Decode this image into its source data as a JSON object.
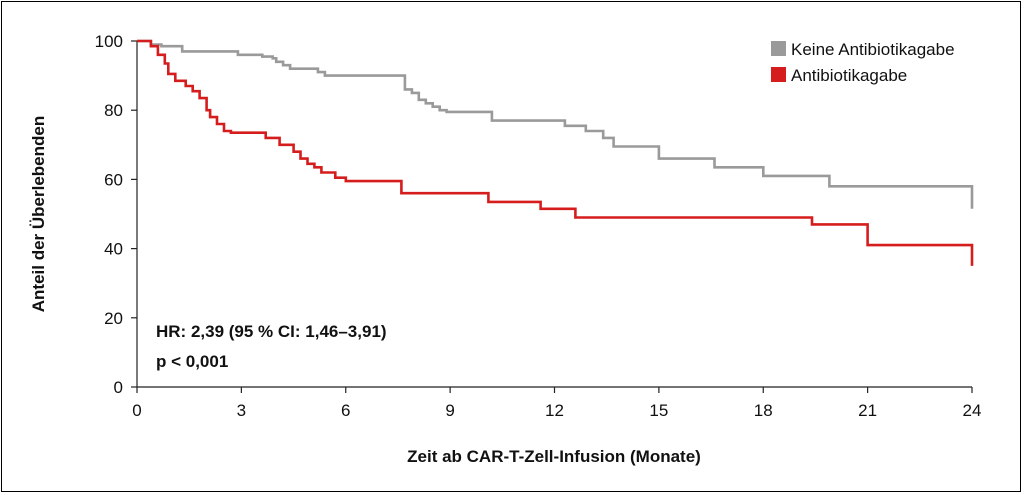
{
  "chart_data": {
    "type": "line",
    "step": true,
    "xlabel": "Zeit ab CAR-T-Zell-Infusion (Monate)",
    "ylabel": "Anteil der Überlebenden",
    "xlim": [
      0,
      24
    ],
    "ylim": [
      0,
      100
    ],
    "xticks": [
      "0",
      "3",
      "6",
      "9",
      "12",
      "15",
      "18",
      "21",
      "24"
    ],
    "yticks": [
      "0",
      "20",
      "40",
      "60",
      "80",
      "100"
    ],
    "grid": false,
    "legend_position": "top-right",
    "annotations": [
      "HR: 2,39 (95 % CI: 1,46–3,91)",
      "p < 0,001"
    ],
    "series": [
      {
        "name": "Keine Antibiotikagabe",
        "color": "#9a9a9a",
        "x": [
          0,
          0.4,
          0.7,
          1.3,
          2.9,
          3.6,
          3.9,
          4.0,
          4.2,
          4.4,
          5.2,
          5.4,
          7.7,
          7.9,
          8.1,
          8.3,
          8.5,
          8.7,
          8.9,
          10.2,
          12.3,
          12.9,
          13.4,
          13.7,
          15.0,
          16.6,
          18.0,
          19.9,
          24.0,
          24.0
        ],
        "y": [
          100,
          99,
          98.5,
          97,
          96,
          95.5,
          95,
          94,
          93,
          92,
          91,
          90,
          86,
          85,
          83,
          82,
          81,
          80,
          79.5,
          77,
          75.5,
          74,
          72,
          69.5,
          66,
          63.5,
          61,
          58,
          57.5,
          51.5
        ]
      },
      {
        "name": "Antibiotikagabe",
        "color": "#d61d1d",
        "x": [
          0,
          0.4,
          0.6,
          0.8,
          0.9,
          1.1,
          1.4,
          1.6,
          1.8,
          2.0,
          2.1,
          2.3,
          2.5,
          2.7,
          3.7,
          4.1,
          4.5,
          4.7,
          4.9,
          5.1,
          5.3,
          5.7,
          6.0,
          7.6,
          10.1,
          11.6,
          12.6,
          19.4,
          21.0,
          24.0
        ],
        "y": [
          100,
          98.5,
          96,
          93.5,
          90.5,
          88.5,
          87,
          85.5,
          83.5,
          80,
          78,
          76,
          74,
          73.5,
          72,
          70,
          68,
          66,
          64.5,
          63.5,
          62,
          60.5,
          59.5,
          56,
          53.5,
          51.5,
          49,
          47,
          41,
          35
        ]
      }
    ]
  },
  "legend": {
    "items": [
      {
        "label": "Keine Antibiotikagabe",
        "color": "#9a9a9a"
      },
      {
        "label": "Antibiotikagabe",
        "color": "#d61d1d"
      }
    ]
  },
  "stats": {
    "hr": "HR: 2,39 (95 % CI: 1,46–3,91)",
    "p": "p < 0,001"
  }
}
